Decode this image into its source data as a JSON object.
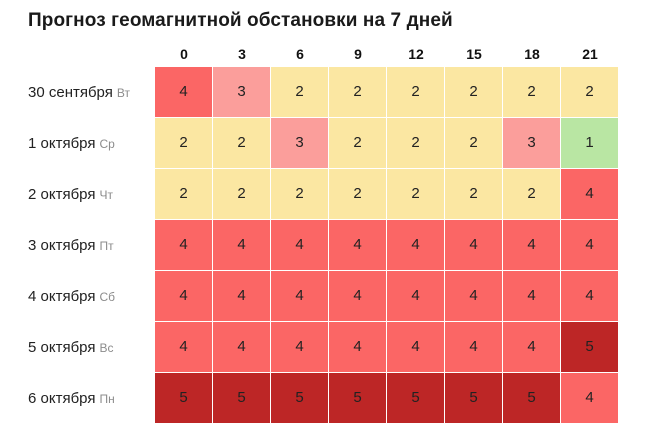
{
  "title": "Прогноз геомагнитной обстановки на 7 дней",
  "chart_data": {
    "type": "heatmap",
    "title": "Прогноз геомагнитной обстановки на 7 дней",
    "columns": [
      "0",
      "3",
      "6",
      "9",
      "12",
      "15",
      "18",
      "21"
    ],
    "rows": [
      {
        "date": "30 сентября",
        "weekday": "Вт",
        "values": [
          4,
          3,
          2,
          2,
          2,
          2,
          2,
          2
        ]
      },
      {
        "date": "1 октября",
        "weekday": "Ср",
        "values": [
          2,
          2,
          3,
          2,
          2,
          2,
          3,
          1
        ]
      },
      {
        "date": "2 октября",
        "weekday": "Чт",
        "values": [
          2,
          2,
          2,
          2,
          2,
          2,
          2,
          4
        ]
      },
      {
        "date": "3 октября",
        "weekday": "Пт",
        "values": [
          4,
          4,
          4,
          4,
          4,
          4,
          4,
          4
        ]
      },
      {
        "date": "4 октября",
        "weekday": "Сб",
        "values": [
          4,
          4,
          4,
          4,
          4,
          4,
          4,
          4
        ]
      },
      {
        "date": "5 октября",
        "weekday": "Вс",
        "values": [
          4,
          4,
          4,
          4,
          4,
          4,
          4,
          5
        ]
      },
      {
        "date": "6 октября",
        "weekday": "Пн",
        "values": [
          5,
          5,
          5,
          5,
          5,
          5,
          5,
          4
        ]
      }
    ],
    "level_colors": {
      "1": "#b9e6a3",
      "2": "#fbe7a2",
      "3": "#fb9e9b",
      "4": "#fb6665",
      "5": "#bd2626"
    }
  }
}
